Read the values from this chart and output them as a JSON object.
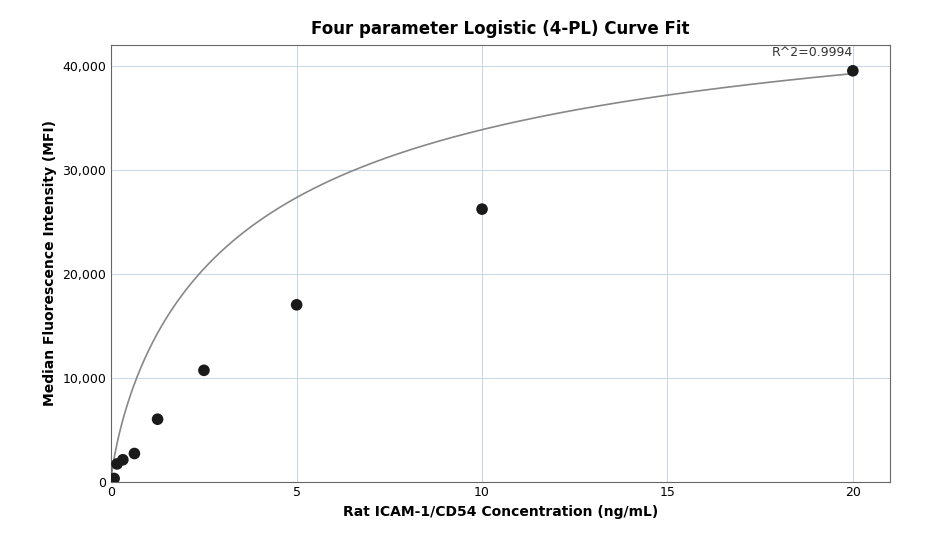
{
  "title": "Four parameter Logistic (4-PL) Curve Fit",
  "xlabel": "Rat ICAM-1/CD54 Concentration (ng/mL)",
  "ylabel": "Median Fluorescence Intensity (MFI)",
  "scatter_x": [
    0.078,
    0.156,
    0.313,
    0.625,
    1.25,
    2.5,
    5.0,
    10.0,
    20.0
  ],
  "scatter_y": [
    300,
    1700,
    2100,
    2700,
    6000,
    10700,
    17000,
    26200,
    39500
  ],
  "r_squared": "R^2=0.9994",
  "xlim": [
    0,
    21
  ],
  "ylim": [
    0,
    42000
  ],
  "xticks": [
    0,
    5,
    10,
    15,
    20
  ],
  "yticks": [
    0,
    10000,
    20000,
    30000,
    40000
  ],
  "ytick_labels": [
    "0",
    "10,000",
    "20,000",
    "30,000",
    "40,000"
  ],
  "dot_color": "#1a1a1a",
  "dot_size": 70,
  "line_color": "#888888",
  "line_width": 1.2,
  "background_color": "#ffffff",
  "grid_color": "#c8d4e8",
  "title_fontsize": 12,
  "label_fontsize": 10,
  "tick_fontsize": 9,
  "annotation_fontsize": 9,
  "curve_x_start": 0.0,
  "curve_x_end": 20.0
}
